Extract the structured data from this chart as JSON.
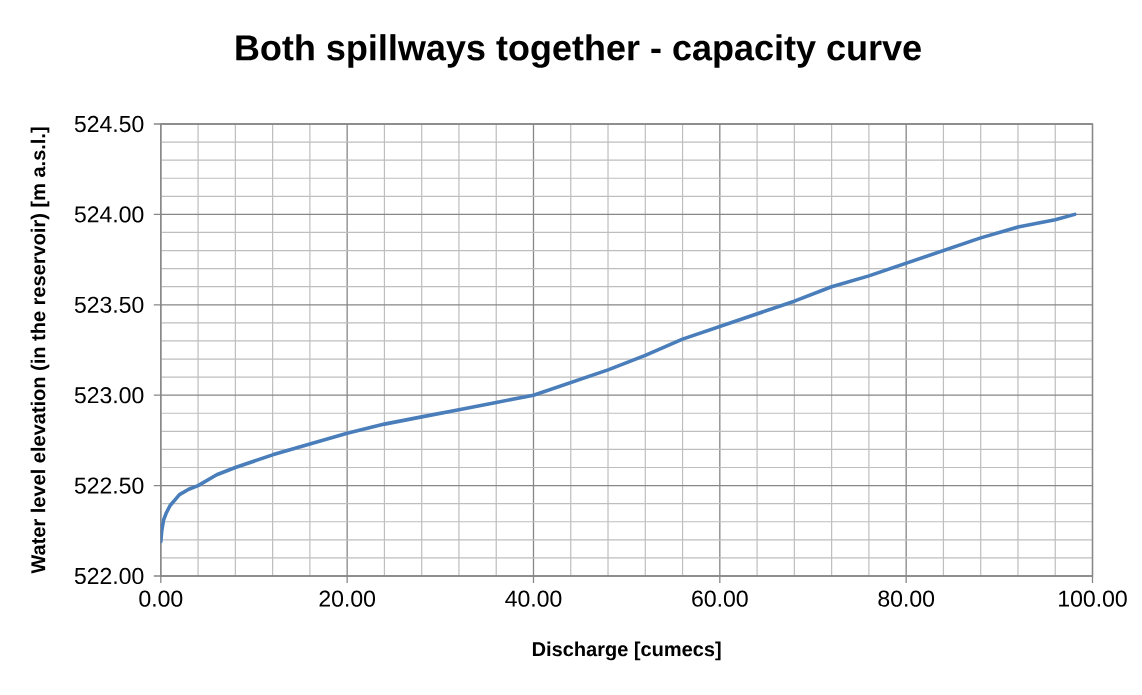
{
  "chart_data": {
    "type": "line",
    "title": "Both spillways together - capacity curve",
    "xlabel": "Discharge [cumecs]",
    "ylabel": "Water level elevation (in the reservoir) [m a.s.l.]",
    "x": [
      0,
      0.1,
      0.3,
      0.6,
      1.0,
      1.5,
      2.0,
      3.0,
      4.0,
      6.0,
      8.0,
      12,
      16,
      20,
      24,
      28,
      32,
      36,
      40,
      44,
      48,
      52,
      56,
      60,
      64,
      68,
      72,
      76,
      80,
      84,
      88,
      92,
      96,
      98.1
    ],
    "series": [
      {
        "color": "#4a7ebb",
        "values": [
          522.19,
          522.25,
          522.31,
          522.35,
          522.39,
          522.42,
          522.45,
          522.48,
          522.5,
          522.56,
          522.6,
          522.67,
          522.73,
          522.79,
          522.84,
          522.88,
          522.92,
          522.96,
          523.0,
          523.07,
          523.14,
          523.22,
          523.31,
          523.38,
          523.45,
          523.52,
          523.6,
          523.66,
          523.73,
          523.8,
          523.87,
          523.93,
          523.97,
          524.0
        ]
      }
    ],
    "xlim": [
      0,
      100
    ],
    "ylim": [
      522,
      524.5
    ],
    "xticks": [
      {
        "value": 0,
        "label": "0.00"
      },
      {
        "value": 4,
        "label": null
      },
      {
        "value": 8,
        "label": null
      },
      {
        "value": 12,
        "label": null
      },
      {
        "value": 16,
        "label": null
      },
      {
        "value": 20,
        "label": "20.00"
      },
      {
        "value": 24,
        "label": null
      },
      {
        "value": 28,
        "label": null
      },
      {
        "value": 32,
        "label": null
      },
      {
        "value": 36,
        "label": null
      },
      {
        "value": 40,
        "label": "40.00"
      },
      {
        "value": 44,
        "label": null
      },
      {
        "value": 48,
        "label": null
      },
      {
        "value": 52,
        "label": null
      },
      {
        "value": 56,
        "label": null
      },
      {
        "value": 60,
        "label": "60.00"
      },
      {
        "value": 64,
        "label": null
      },
      {
        "value": 68,
        "label": null
      },
      {
        "value": 72,
        "label": null
      },
      {
        "value": 76,
        "label": null
      },
      {
        "value": 80,
        "label": "80.00"
      },
      {
        "value": 84,
        "label": null
      },
      {
        "value": 88,
        "label": null
      },
      {
        "value": 92,
        "label": null
      },
      {
        "value": 96,
        "label": null
      },
      {
        "value": 100,
        "label": "100.00"
      }
    ],
    "yticks": [
      {
        "value": 522,
        "label": "522.00"
      },
      {
        "value": 522.1,
        "label": null
      },
      {
        "value": 522.2,
        "label": null
      },
      {
        "value": 522.3,
        "label": null
      },
      {
        "value": 522.4,
        "label": null
      },
      {
        "value": 522.5,
        "label": "522.50"
      },
      {
        "value": 522.6,
        "label": null
      },
      {
        "value": 522.7,
        "label": null
      },
      {
        "value": 522.8,
        "label": null
      },
      {
        "value": 522.9,
        "label": null
      },
      {
        "value": 523,
        "label": "523.00"
      },
      {
        "value": 523.1,
        "label": null
      },
      {
        "value": 523.2,
        "label": null
      },
      {
        "value": 523.3,
        "label": null
      },
      {
        "value": 523.4,
        "label": null
      },
      {
        "value": 523.5,
        "label": "523.50"
      },
      {
        "value": 523.6,
        "label": null
      },
      {
        "value": 523.7,
        "label": null
      },
      {
        "value": 523.8,
        "label": null
      },
      {
        "value": 523.9,
        "label": null
      },
      {
        "value": 524,
        "label": "524.00"
      },
      {
        "value": 524.1,
        "label": null
      },
      {
        "value": 524.2,
        "label": null
      },
      {
        "value": 524.3,
        "label": null
      },
      {
        "value": 524.4,
        "label": null
      },
      {
        "value": 524.5,
        "label": "524.50"
      }
    ],
    "grid": true,
    "marker": "none",
    "line_style": "solid"
  }
}
